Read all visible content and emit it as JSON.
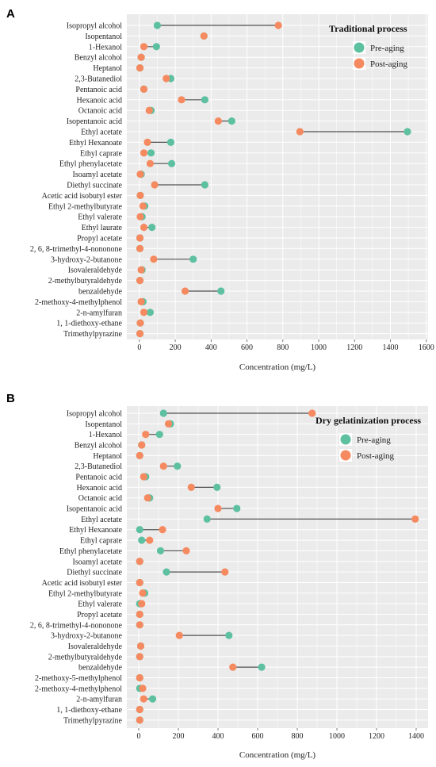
{
  "colors": {
    "panel_bg": "#EBEBEB",
    "grid": "#FFFFFF",
    "segment": "#505050",
    "pre_aging": "#5DC0A0",
    "post_aging": "#F58A60"
  },
  "chart_data": [
    {
      "type": "dumbbell",
      "panel_label": "A",
      "xlabel": "Concentration (mg/L)",
      "xlim": [
        -70,
        1610
      ],
      "xticks": [
        0,
        200,
        400,
        600,
        800,
        1000,
        1200,
        1400,
        1600
      ],
      "legend": {
        "title": "Traditional process",
        "placement": "top-right",
        "entries": [
          {
            "label": "Pre-aging",
            "color_key": "pre_aging"
          },
          {
            "label": "Post-aging",
            "color_key": "post_aging"
          }
        ]
      },
      "categories": [
        "Isopropyl alcohol",
        "Isopentanol",
        "1-Hexanol",
        "Benzyl alcohol",
        "Heptanol",
        "2,3-Butanediol",
        "Pentanoic acid",
        "Hexanoic acid",
        "Octanoic acid",
        "Isopentanoic acid",
        "Ethyl acetate",
        "Ethyl Hexanoate",
        "Ethyl caprate",
        "Ethyl phenylacetate",
        "Isoamyl acetate",
        "Diethyl succinate",
        "Acetic acid isobutyl ester",
        "Ethyl 2-methylbutyrate",
        "Ethyl valerate",
        "Ethyl laurate",
        "Propyl acetate",
        "2, 6, 8-trimethyl-4-nononone",
        "3-hydroxy-2-butanone",
        "Isovaleraldehyde",
        "2-methylbutyraldehyde",
        "benzaldehyde",
        "2-methoxy-4-methylphenol",
        "2-n-amylfuran",
        "1, 1-diethoxy-ethane",
        "Trimethylpyrazine"
      ],
      "series": [
        {
          "name": "Pre-aging",
          "values": [
            100,
            360,
            95,
            10,
            3,
            175,
            25,
            365,
            65,
            515,
            1495,
            175,
            65,
            180,
            10,
            365,
            5,
            30,
            15,
            70,
            3,
            3,
            300,
            15,
            3,
            455,
            20,
            60,
            5,
            3
          ]
        },
        {
          "name": "Post-aging",
          "values": [
            775,
            360,
            25,
            10,
            3,
            150,
            25,
            235,
            55,
            440,
            895,
            45,
            25,
            60,
            5,
            85,
            5,
            20,
            5,
            25,
            3,
            3,
            80,
            10,
            3,
            255,
            10,
            25,
            5,
            3
          ]
        }
      ]
    },
    {
      "type": "dumbbell",
      "panel_label": "B",
      "xlabel": "Concentration (mg/L)",
      "xlim": [
        -60,
        1460
      ],
      "xticks": [
        0,
        200,
        400,
        600,
        800,
        1000,
        1200,
        1400
      ],
      "legend": {
        "title": "Dry gelatinization process",
        "placement": "top-right",
        "entries": [
          {
            "label": "Pre-aging",
            "color_key": "pre_aging"
          },
          {
            "label": "Post-aging",
            "color_key": "post_aging"
          }
        ]
      },
      "categories": [
        "Isopropyl alcohol",
        "Isopentanol",
        "1-Hexanol",
        "Benzyl alcohol",
        "Heptanol",
        "2,3-Butanediol",
        "Pentanoic acid",
        "Hexanoic acid",
        "Octanoic acid",
        "Isopentanoic acid",
        "Ethyl acetate",
        "Ethyl Hexanoate",
        "Ethyl caprate",
        "Ethyl phenylacetate",
        "Isoamyl acetate",
        "Diethyl succinate",
        "Acetic acid isobutyl ester",
        "Ethyl 2-methylbutyrate",
        "Ethyl valerate",
        "Propyl acetate",
        "2, 6, 8-trimethyl-4-nononone",
        "3-hydroxy-2-butanone",
        "Isovaleraldehyde",
        "2-methylbutyraldehyde",
        "benzaldehyde",
        "2-methoxy-5-methylphenol",
        "2-methoxy-4-methylphenol",
        "2-n-amylfuran",
        "1, 1-diethoxy-ethane",
        "Trimethylpyrazine"
      ],
      "series": [
        {
          "name": "Pre-aging",
          "values": [
            125,
            160,
            105,
            15,
            5,
            195,
            35,
            395,
            55,
            495,
            345,
            5,
            15,
            110,
            5,
            140,
            5,
            30,
            5,
            5,
            5,
            455,
            10,
            5,
            620,
            5,
            5,
            70,
            5,
            5
          ]
        },
        {
          "name": "Post-aging",
          "values": [
            875,
            150,
            35,
            15,
            5,
            125,
            25,
            265,
            45,
            400,
            1395,
            120,
            55,
            240,
            5,
            435,
            5,
            20,
            15,
            5,
            5,
            205,
            10,
            5,
            475,
            5,
            20,
            25,
            5,
            5
          ]
        }
      ]
    }
  ]
}
